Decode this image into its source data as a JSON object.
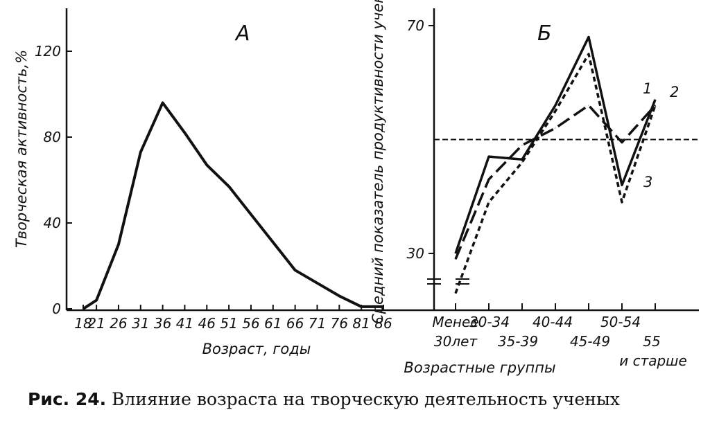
{
  "chart_data": [
    {
      "panel_label": "А",
      "type": "line",
      "xlabel": "Возраст, годы",
      "ylabel": "Творческая активность,%",
      "x_ticks": [
        "18",
        "21",
        "26",
        "31",
        "36",
        "41",
        "46",
        "51",
        "56",
        "61",
        "66",
        "71",
        "76",
        "81",
        "86"
      ],
      "y_ticks": [
        "0",
        "40",
        "80",
        "120"
      ],
      "ylim": [
        0,
        140
      ],
      "series": [
        {
          "x": [
            18,
            21,
            26,
            31,
            36,
            41,
            46,
            51,
            56,
            61,
            66,
            71,
            76,
            81,
            86
          ],
          "y": [
            0,
            4,
            30,
            73,
            96,
            82,
            67,
            57,
            44,
            31,
            18,
            12,
            6,
            1,
            1
          ]
        }
      ]
    },
    {
      "panel_label": "Б",
      "type": "line",
      "xlabel": "Возрастные группы",
      "ylabel": "Средний показатель продуктивности ученых",
      "categories": [
        "Менее 30лет",
        "30-34",
        "35-39",
        "40-44",
        "45-49",
        "50-54",
        "55 и старше"
      ],
      "category_lines": [
        [
          "Менее",
          "30лет"
        ],
        [
          "30-34"
        ],
        [
          "35-39"
        ],
        [
          "40-44"
        ],
        [
          "45-49"
        ],
        [
          "50-54"
        ],
        [
          "55",
          "и старше"
        ]
      ],
      "y_ticks": [
        "30",
        "70"
      ],
      "ylim": [
        26,
        73
      ],
      "reference_y": 50,
      "series": [
        {
          "name": "1",
          "style": "solid",
          "values": [
            30,
            47,
            46.5,
            56,
            68,
            42,
            57
          ]
        },
        {
          "name": "2",
          "style": "dashed",
          "values": [
            29,
            43,
            49,
            52,
            56,
            49.5,
            56
          ]
        },
        {
          "name": "3",
          "style": "dotted",
          "values": [
            23,
            39,
            46,
            55,
            65,
            39,
            56
          ]
        }
      ]
    }
  ],
  "caption": {
    "number": "Рис. 24.",
    "text": "Влияние возраста на творческую деятельность ученых"
  }
}
